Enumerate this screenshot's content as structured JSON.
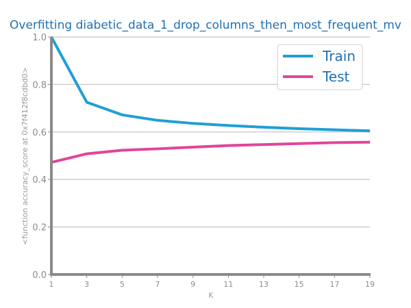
{
  "chart_data": {
    "type": "line",
    "title": "Overfitting diabetic_data_1_drop_columns_then_most_frequent_mv",
    "xlabel": "K",
    "ylabel": "<function accuracy_score at 0x7f412f8cdbd0>",
    "x": [
      1,
      3,
      5,
      7,
      9,
      11,
      13,
      15,
      17,
      19
    ],
    "xticks": [
      "1",
      "3",
      "5",
      "7",
      "9",
      "11",
      "13",
      "15",
      "17",
      "19"
    ],
    "xlim": [
      1,
      19
    ],
    "ylim": [
      0.0,
      1.0
    ],
    "yticks": [
      "0.0",
      "0.2",
      "0.4",
      "0.6",
      "0.8",
      "1.0"
    ],
    "grid": "horizontal",
    "legend_position": "top-right",
    "series": [
      {
        "name": "Train",
        "color": "#1f9fd5",
        "values": [
          1.0,
          0.725,
          0.672,
          0.649,
          0.636,
          0.627,
          0.62,
          0.614,
          0.609,
          0.605
        ]
      },
      {
        "name": "Test",
        "color": "#e2449a",
        "values": [
          0.472,
          0.508,
          0.523,
          0.529,
          0.536,
          0.543,
          0.547,
          0.551,
          0.555,
          0.557
        ]
      }
    ]
  }
}
